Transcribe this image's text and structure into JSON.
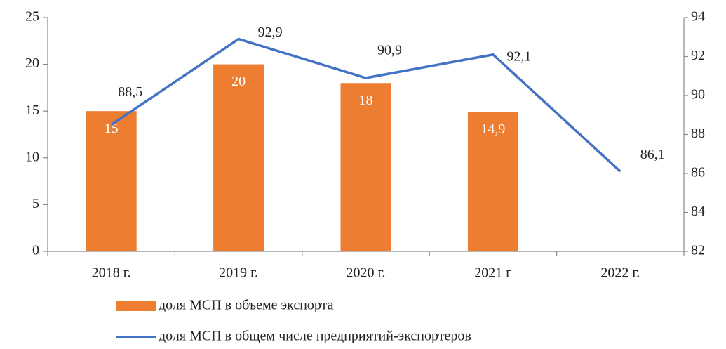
{
  "chart_data": {
    "type": "combo",
    "categories": [
      "2018 г.",
      "2019 г.",
      "2020 г.",
      "2021 г",
      "2022 г."
    ],
    "series": [
      {
        "name": "доля МСП в объеме экспорта",
        "color": "#ed7d31",
        "type": "bar",
        "values": [
          15,
          20,
          18,
          14.9,
          null
        ],
        "value_labels": [
          "15",
          "20",
          "18",
          "14,9",
          null
        ]
      },
      {
        "name": "доля МСП в общем числе предприятий-экспортеров",
        "color": "#4472c4",
        "type": "line",
        "axis": "y2",
        "values": [
          88.5,
          92.9,
          90.9,
          92.1,
          86.1
        ],
        "value_labels": [
          "88,5",
          "92,9",
          "90,9",
          "92,1",
          "86,1"
        ]
      }
    ],
    "ylim": [
      0,
      25
    ],
    "yticks": [
      0,
      5,
      10,
      15,
      20,
      25
    ],
    "y2lim": [
      82,
      94
    ],
    "y2ticks": [
      82,
      84,
      86,
      88,
      90,
      92,
      94
    ],
    "legend": "bottom"
  }
}
